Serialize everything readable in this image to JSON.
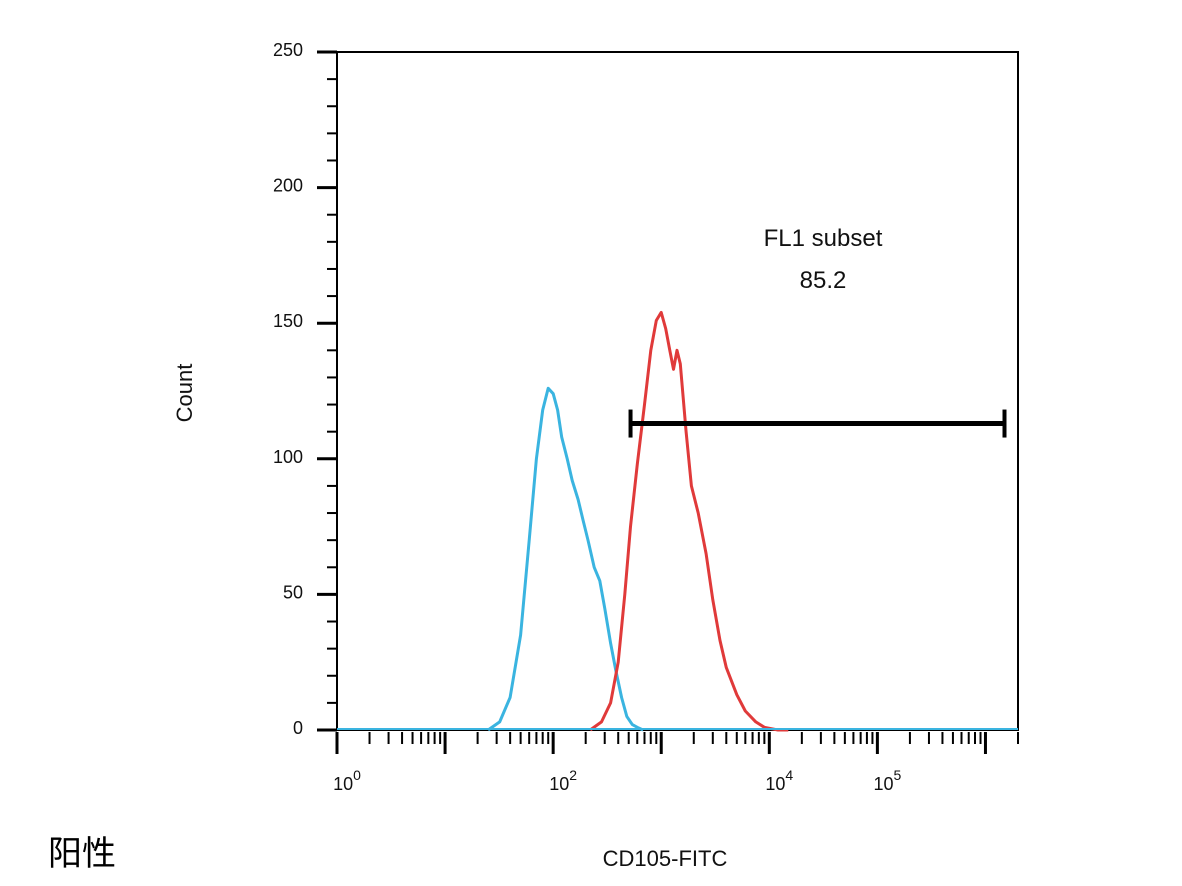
{
  "page_label": "阳性",
  "chart_data": {
    "type": "line",
    "xlabel": "CD105-FITC",
    "ylabel": "Count",
    "x_scale": "log",
    "xlim": [
      1,
      2000000
    ],
    "ylim": [
      0,
      250
    ],
    "y_ticks": [
      0,
      50,
      100,
      150,
      200,
      250
    ],
    "x_ticks": [
      {
        "value": 1,
        "base": "10",
        "exp": "0"
      },
      {
        "value": 100,
        "base": "10",
        "exp": "2"
      },
      {
        "value": 10000,
        "base": "10",
        "exp": "4"
      },
      {
        "value": 100000,
        "base": "10",
        "exp": "5"
      }
    ],
    "grid": false,
    "gate": {
      "name": "FL1 subset",
      "value": "85.2",
      "x_start": 520,
      "x_end": 1500000,
      "y": 113
    },
    "series": [
      {
        "color": "#3ab4e0",
        "x": [
          25,
          32,
          40,
          50,
          60,
          70,
          80,
          90,
          100,
          110,
          120,
          135,
          150,
          170,
          190,
          210,
          240,
          270,
          300,
          340,
          380,
          430,
          480,
          540,
          600,
          680
        ],
        "y": [
          0,
          3,
          12,
          35,
          70,
          100,
          118,
          126,
          124,
          118,
          108,
          100,
          92,
          85,
          77,
          70,
          60,
          55,
          45,
          32,
          22,
          12,
          5,
          2,
          1,
          0
        ]
      },
      {
        "color": "#e03a3a",
        "x": [
          220,
          280,
          340,
          400,
          460,
          520,
          600,
          700,
          800,
          900,
          1000,
          1100,
          1200,
          1300,
          1400,
          1500,
          1700,
          1900,
          2200,
          2600,
          3000,
          3500,
          4000,
          5000,
          6000,
          7500,
          9000,
          12000,
          15000
        ],
        "y": [
          0,
          3,
          10,
          25,
          50,
          75,
          98,
          120,
          140,
          151,
          154,
          148,
          140,
          133,
          140,
          135,
          110,
          90,
          80,
          65,
          48,
          33,
          23,
          13,
          7,
          3,
          1,
          0,
          0
        ]
      }
    ]
  }
}
